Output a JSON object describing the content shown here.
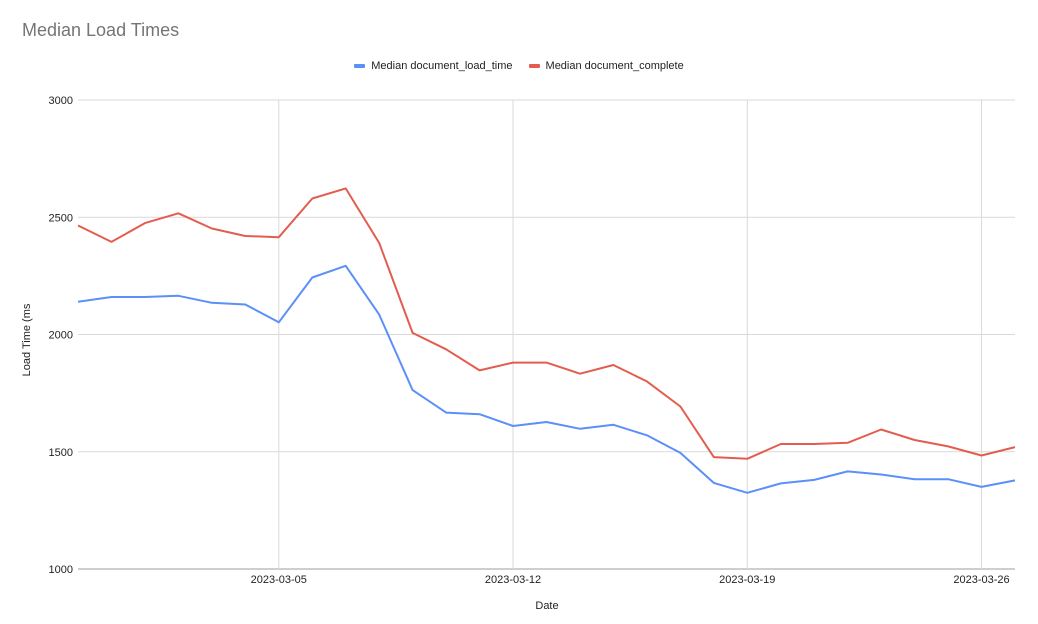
{
  "chart_data": {
    "type": "line",
    "title": "Median Load Times",
    "xlabel": "Date",
    "ylabel": "Load Time (ms",
    "ylim": [
      1000,
      3000
    ],
    "yticks": [
      1000,
      1500,
      2000,
      2500,
      3000
    ],
    "xticks": [
      "2023-03-05",
      "2023-03-12",
      "2023-03-19",
      "2023-03-26"
    ],
    "x": [
      "2023-02-27",
      "2023-02-28",
      "2023-03-01",
      "2023-03-02",
      "2023-03-03",
      "2023-03-04",
      "2023-03-05",
      "2023-03-06",
      "2023-03-07",
      "2023-03-08",
      "2023-03-09",
      "2023-03-10",
      "2023-03-11",
      "2023-03-12",
      "2023-03-13",
      "2023-03-14",
      "2023-03-15",
      "2023-03-16",
      "2023-03-17",
      "2023-03-18",
      "2023-03-19",
      "2023-03-20",
      "2023-03-21",
      "2023-03-22",
      "2023-03-23",
      "2023-03-24",
      "2023-03-25",
      "2023-03-26",
      "2023-03-27"
    ],
    "grid": true,
    "legend_position": "top",
    "series": [
      {
        "name": "Median document_load_time",
        "color": "#5B8FF9",
        "values": [
          2140,
          2160,
          2160,
          2165,
          2135,
          2128,
          2052,
          2243,
          2293,
          2085,
          1763,
          1667,
          1660,
          1610,
          1627,
          1598,
          1615,
          1570,
          1495,
          1367,
          1325,
          1365,
          1380,
          1416,
          1403,
          1383,
          1383,
          1350,
          1378
        ]
      },
      {
        "name": "Median document_complete",
        "color": "#E35D4F",
        "values": [
          2465,
          2395,
          2475,
          2517,
          2452,
          2420,
          2415,
          2580,
          2623,
          2390,
          2007,
          1937,
          1847,
          1880,
          1880,
          1833,
          1870,
          1800,
          1693,
          1477,
          1470,
          1533,
          1533,
          1538,
          1595,
          1550,
          1523,
          1484,
          1520
        ]
      }
    ]
  }
}
